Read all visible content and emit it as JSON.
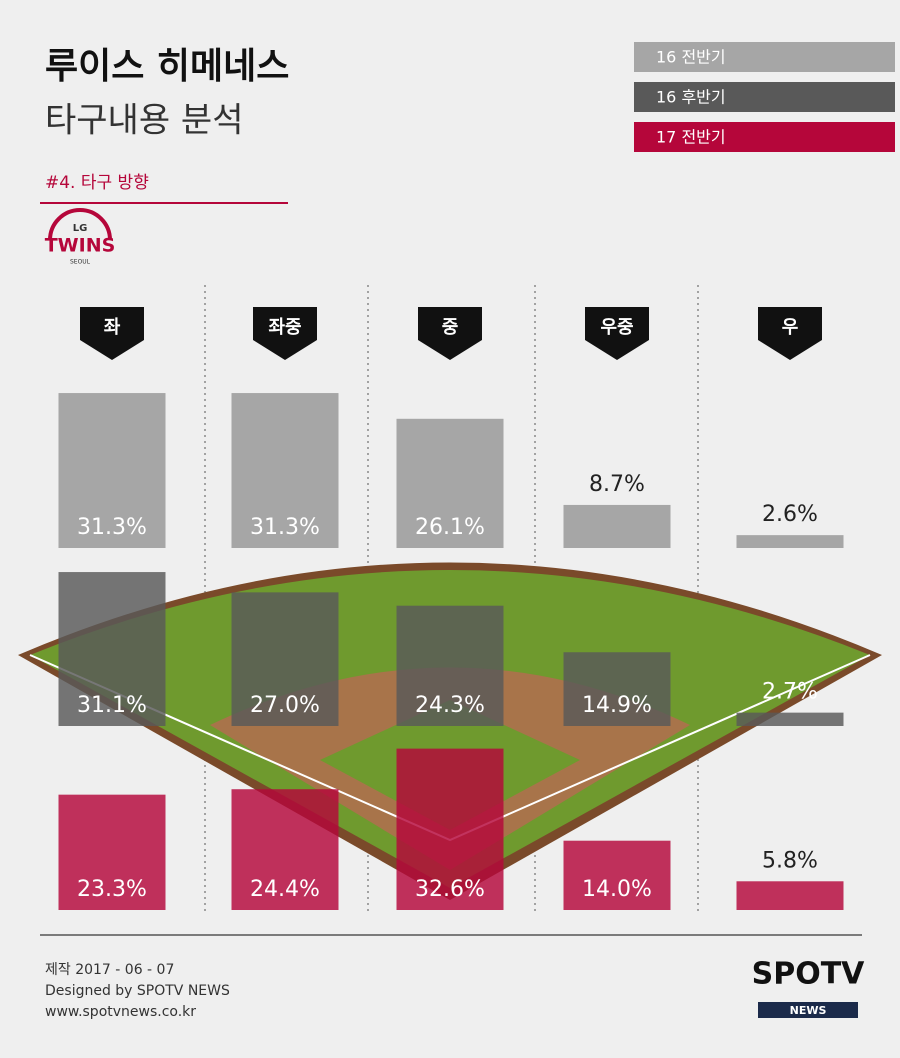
{
  "header": {
    "title": "루이스 히메네스",
    "subtitle": "타구내용 분석",
    "section": "#4. 타구 방향"
  },
  "logo": {
    "top": "LG",
    "name": "TWINS",
    "city": "SEOUL"
  },
  "chart_data": {
    "type": "bar",
    "categories": [
      "좌",
      "좌중",
      "중",
      "우중",
      "우"
    ],
    "series": [
      {
        "name": "16 전반기",
        "color": "#a6a6a6",
        "values": [
          31.3,
          31.3,
          26.1,
          8.7,
          2.6
        ],
        "value_labels": [
          "31.3%",
          "31.3%",
          "26.1%",
          "8.7%",
          "2.6%"
        ]
      },
      {
        "name": "16 후반기",
        "color": "#595959",
        "values": [
          31.1,
          27.0,
          24.3,
          14.9,
          2.7
        ],
        "value_labels": [
          "31.1%",
          "27.0%",
          "24.3%",
          "14.9%",
          "2.7%"
        ]
      },
      {
        "name": "17 전반기",
        "color": "#b5063a",
        "values": [
          23.3,
          24.4,
          32.6,
          14.0,
          5.8
        ],
        "value_labels": [
          "23.3%",
          "24.4%",
          "32.6%",
          "14.0%",
          "5.8%"
        ]
      }
    ]
  },
  "footer": {
    "made": "제작 2017 - 06 - 07",
    "designer": "Designed by SPOTV NEWS",
    "url": "www.spotvnews.co.kr",
    "brand": "SPOTV",
    "brand_sub": "NEWS"
  }
}
